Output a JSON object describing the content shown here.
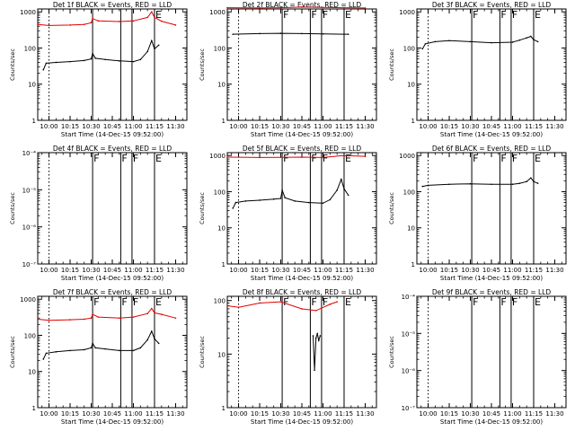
{
  "colors": {
    "events": "#000000",
    "lld": "#e00000",
    "axes": "#000000"
  },
  "chart_data": [
    {
      "type": "line",
      "title": "Det 1f BLACK = Events, RED = LLD",
      "xlabel": "Start Time (14-Dec-15 09:52:00)",
      "ylabel": "Counts/sec",
      "xlim": [
        "09:52",
        "11:38"
      ],
      "x_ticks": [
        "10:00",
        "10:15",
        "10:30",
        "10:45",
        "11:00",
        "11:15",
        "11:30"
      ],
      "y_scale": "log",
      "ylim": [
        1,
        1200
      ],
      "y_ticks": [
        "1",
        "10",
        "100",
        "1000"
      ],
      "markers": [
        {
          "time": "10:31",
          "label": ""
        },
        {
          "time": "10:51",
          "label": ""
        },
        {
          "time": "10:59",
          "label": ""
        },
        {
          "time": "11:15",
          "label": "E"
        }
      ],
      "series": [
        {
          "kind": "events",
          "x": [
            "09:56",
            "09:58",
            "10:05",
            "10:15",
            "10:25",
            "10:30",
            "10:31",
            "10:33",
            "10:40",
            "10:50",
            "11:00",
            "11:05",
            "11:10",
            "11:13",
            "11:15",
            "11:18"
          ],
          "values": [
            25,
            38,
            40,
            42,
            45,
            50,
            70,
            52,
            48,
            44,
            42,
            48,
            80,
            160,
            95,
            120
          ]
        },
        {
          "kind": "lld",
          "x": [
            "09:52",
            "10:00",
            "10:15",
            "10:25",
            "10:30",
            "10:31",
            "10:35",
            "10:50",
            "11:00",
            "11:10",
            "11:13",
            "11:15",
            "11:20",
            "11:30"
          ],
          "values": [
            450,
            420,
            430,
            450,
            500,
            650,
            560,
            540,
            560,
            700,
            1000,
            700,
            550,
            430
          ]
        }
      ]
    },
    {
      "type": "line",
      "title": "Det 2f BLACK = Events, RED = LLD",
      "xlabel": "Start Time (14-Dec-15 09:52:00)",
      "ylabel": "Counts/sec",
      "xlim": [
        "09:52",
        "11:38"
      ],
      "x_ticks": [
        "10:00",
        "10:15",
        "10:30",
        "10:45",
        "11:00",
        "11:15",
        "11:30"
      ],
      "y_scale": "log",
      "ylim": [
        1,
        1200
      ],
      "y_ticks": [
        "1",
        "10",
        "100",
        "1000"
      ],
      "markers": [
        {
          "time": "10:31",
          "label": "F"
        },
        {
          "time": "10:51",
          "label": "F"
        },
        {
          "time": "10:59",
          "label": "F"
        },
        {
          "time": "11:15",
          "label": "E"
        }
      ],
      "series": [
        {
          "kind": "events",
          "x": [
            "09:56",
            "10:15",
            "10:30",
            "10:45",
            "11:00",
            "11:15",
            "11:18"
          ],
          "values": [
            240,
            250,
            255,
            250,
            245,
            240,
            240
          ]
        },
        {
          "kind": "lld",
          "x": [
            "09:52",
            "10:15",
            "10:30",
            "10:45",
            "11:00",
            "11:15",
            "11:30"
          ],
          "values": [
            1300,
            1280,
            1300,
            1350,
            1320,
            1300,
            1280
          ]
        }
      ]
    },
    {
      "type": "line",
      "title": "Det 3f BLACK = Events, RED = LLD",
      "xlabel": "Start Time (14-Dec-15 09:52:00)",
      "ylabel": "Counts/sec",
      "xlim": [
        "09:52",
        "11:38"
      ],
      "x_ticks": [
        "10:00",
        "10:15",
        "10:30",
        "10:45",
        "11:00",
        "11:15",
        "11:30"
      ],
      "y_scale": "log",
      "ylim": [
        1,
        1200
      ],
      "y_ticks": [
        "1",
        "10",
        "100",
        "1000"
      ],
      "markers": [
        {
          "time": "10:31",
          "label": "F"
        },
        {
          "time": "10:51",
          "label": "F"
        },
        {
          "time": "10:59",
          "label": "F"
        },
        {
          "time": "11:15",
          "label": "E"
        }
      ],
      "series": [
        {
          "kind": "events",
          "x": [
            "09:56",
            "09:58",
            "10:05",
            "10:15",
            "10:30",
            "10:45",
            "11:00",
            "11:05",
            "11:10",
            "11:13",
            "11:15",
            "11:18"
          ],
          "values": [
            95,
            130,
            150,
            160,
            150,
            140,
            145,
            165,
            190,
            210,
            170,
            150
          ]
        }
      ]
    },
    {
      "type": "line",
      "title": "Det 4f BLACK = Events, RED = LLD",
      "xlabel": "Start Time (14-Dec-15 09:52:00)",
      "ylabel": "Counts/sec",
      "xlim": [
        "09:52",
        "11:38"
      ],
      "x_ticks": [
        "10:00",
        "10:15",
        "10:30",
        "10:45",
        "11:00",
        "11:15",
        "11:30"
      ],
      "y_scale": "log",
      "ylim": [
        1e-07,
        0.0001
      ],
      "y_ticks": [
        "10⁻⁷",
        "10⁻⁶",
        "10⁻⁵",
        "10⁻⁴"
      ],
      "markers": [
        {
          "time": "10:31",
          "label": "F"
        },
        {
          "time": "10:51",
          "label": "F"
        },
        {
          "time": "10:59",
          "label": "F"
        },
        {
          "time": "11:15",
          "label": "E"
        }
      ],
      "series": []
    },
    {
      "type": "line",
      "title": "Det 5f BLACK = Events, RED = LLD",
      "xlabel": "Start Time (14-Dec-15 09:52:00)",
      "ylabel": "Counts/sec",
      "xlim": [
        "09:52",
        "11:38"
      ],
      "x_ticks": [
        "10:00",
        "10:15",
        "10:30",
        "10:45",
        "11:00",
        "11:15",
        "11:30"
      ],
      "y_scale": "log",
      "ylim": [
        1,
        1200
      ],
      "y_ticks": [
        "1",
        "10",
        "100",
        "1000"
      ],
      "markers": [
        {
          "time": "10:31",
          "label": "F"
        },
        {
          "time": "10:51",
          "label": "F"
        },
        {
          "time": "10:59",
          "label": "F"
        },
        {
          "time": "11:15",
          "label": "E"
        }
      ],
      "series": [
        {
          "kind": "events",
          "x": [
            "09:56",
            "09:58",
            "10:05",
            "10:15",
            "10:25",
            "10:30",
            "10:31",
            "10:33",
            "10:40",
            "10:50",
            "11:00",
            "11:05",
            "11:10",
            "11:13",
            "11:15",
            "11:18"
          ],
          "values": [
            35,
            50,
            55,
            58,
            62,
            65,
            110,
            68,
            55,
            50,
            48,
            60,
            110,
            220,
            120,
            80
          ]
        },
        {
          "kind": "lld",
          "x": [
            "09:52",
            "10:15",
            "10:30",
            "10:45",
            "11:00",
            "11:15",
            "11:30"
          ],
          "values": [
            900,
            880,
            890,
            900,
            880,
            1000,
            950
          ]
        }
      ]
    },
    {
      "type": "line",
      "title": "Det 6f BLACK = Events, RED = LLD",
      "xlabel": "Start Time (14-Dec-15 09:52:00)",
      "ylabel": "Counts/sec",
      "xlim": [
        "09:52",
        "11:38"
      ],
      "x_ticks": [
        "10:00",
        "10:15",
        "10:30",
        "10:45",
        "11:00",
        "11:15",
        "11:30"
      ],
      "y_scale": "log",
      "ylim": [
        1,
        1200
      ],
      "y_ticks": [
        "1",
        "10",
        "100",
        "1000"
      ],
      "markers": [
        {
          "time": "10:31",
          "label": "F"
        },
        {
          "time": "10:51",
          "label": "F"
        },
        {
          "time": "10:59",
          "label": "F"
        },
        {
          "time": "11:15",
          "label": "E"
        }
      ],
      "series": [
        {
          "kind": "events",
          "x": [
            "09:56",
            "10:00",
            "10:15",
            "10:30",
            "10:45",
            "11:00",
            "11:05",
            "11:10",
            "11:13",
            "11:15",
            "11:18"
          ],
          "values": [
            140,
            150,
            160,
            165,
            160,
            160,
            170,
            190,
            240,
            190,
            170
          ]
        }
      ]
    },
    {
      "type": "line",
      "title": "Det 7f BLACK = Events, RED = LLD",
      "xlabel": "Start Time (14-Dec-15 09:52:00)",
      "ylabel": "Counts/sec",
      "xlim": [
        "09:52",
        "11:38"
      ],
      "x_ticks": [
        "10:00",
        "10:15",
        "10:30",
        "10:45",
        "11:00",
        "11:15",
        "11:30"
      ],
      "y_scale": "log",
      "ylim": [
        1,
        1200
      ],
      "y_ticks": [
        "1",
        "10",
        "100",
        "1000"
      ],
      "markers": [
        {
          "time": "10:31",
          "label": "F"
        },
        {
          "time": "10:51",
          "label": "F"
        },
        {
          "time": "10:59",
          "label": "F"
        },
        {
          "time": "11:15",
          "label": "E"
        }
      ],
      "series": [
        {
          "kind": "events",
          "x": [
            "09:56",
            "09:58",
            "10:05",
            "10:15",
            "10:25",
            "10:30",
            "10:31",
            "10:33",
            "10:40",
            "10:50",
            "11:00",
            "11:05",
            "11:10",
            "11:13",
            "11:15",
            "11:18"
          ],
          "values": [
            22,
            32,
            35,
            38,
            40,
            45,
            60,
            45,
            42,
            38,
            38,
            45,
            75,
            130,
            80,
            60
          ]
        },
        {
          "kind": "lld",
          "x": [
            "09:52",
            "10:00",
            "10:15",
            "10:25",
            "10:30",
            "10:31",
            "10:35",
            "10:50",
            "11:00",
            "11:10",
            "11:13",
            "11:15",
            "11:20",
            "11:30"
          ],
          "values": [
            280,
            260,
            270,
            280,
            300,
            380,
            320,
            300,
            320,
            400,
            550,
            420,
            380,
            300
          ]
        }
      ]
    },
    {
      "type": "line",
      "title": "Det 8f BLACK = Events, RED = LLD",
      "xlabel": "Start Time (14-Dec-15 09:52:00)",
      "ylabel": "Counts/sec",
      "xlim": [
        "09:52",
        "11:38"
      ],
      "x_ticks": [
        "10:00",
        "10:15",
        "10:30",
        "10:45",
        "11:00",
        "11:15",
        "11:30"
      ],
      "y_scale": "log",
      "ylim": [
        1,
        120
      ],
      "y_ticks": [
        "1",
        "10",
        "100"
      ],
      "markers": [
        {
          "time": "10:31",
          "label": "F"
        },
        {
          "time": "10:51",
          "label": "F"
        },
        {
          "time": "10:59",
          "label": "F"
        },
        {
          "time": "11:15",
          "label": "E"
        }
      ],
      "series": [
        {
          "kind": "lld",
          "x": [
            "09:52",
            "10:00",
            "10:15",
            "10:30",
            "10:45",
            "10:55",
            "11:05",
            "11:10"
          ],
          "values": [
            80,
            75,
            90,
            95,
            70,
            65,
            85,
            95
          ]
        },
        {
          "kind": "events",
          "x": [
            "10:53",
            "10:54",
            "10:55",
            "10:56",
            "10:57",
            "10:58"
          ],
          "values": [
            22,
            5,
            20,
            24,
            18,
            22
          ]
        }
      ]
    },
    {
      "type": "line",
      "title": "Det 9f BLACK = Events, RED = LLD",
      "xlabel": "Start Time (14-Dec-15 09:52:00)",
      "ylabel": "Counts/sec",
      "xlim": [
        "09:52",
        "11:38"
      ],
      "x_ticks": [
        "10:00",
        "10:15",
        "10:30",
        "10:45",
        "11:00",
        "11:15",
        "11:30"
      ],
      "y_scale": "log",
      "ylim": [
        1e-07,
        0.0001
      ],
      "y_ticks": [
        "10⁻⁷",
        "10⁻⁶",
        "10⁻⁵",
        "10⁻⁴"
      ],
      "markers": [
        {
          "time": "10:31",
          "label": "F"
        },
        {
          "time": "10:51",
          "label": "F"
        },
        {
          "time": "10:59",
          "label": "F"
        },
        {
          "time": "11:15",
          "label": "E"
        }
      ],
      "series": []
    }
  ]
}
